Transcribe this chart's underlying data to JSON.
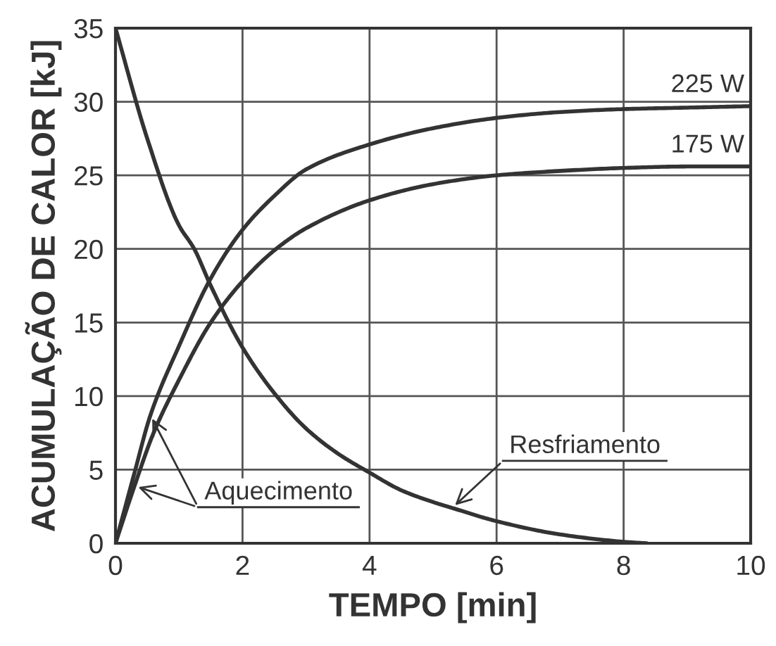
{
  "chart_data": {
    "type": "line",
    "xlabel": "TEMPO [min]",
    "ylabel": "ACUMULAÇÃO DE CALOR [kJ]",
    "series": [
      {
        "name": "225 W",
        "color": "#333333",
        "x": [
          0,
          0.3,
          0.55,
          1,
          1.5,
          2,
          2.5,
          3,
          4,
          5,
          6,
          7,
          8,
          9,
          10
        ],
        "values": [
          0,
          4.8,
          8.7,
          13.4,
          18.0,
          21.3,
          23.6,
          25.4,
          27.1,
          28.2,
          28.9,
          29.3,
          29.5,
          29.6,
          29.7
        ]
      },
      {
        "name": "175 W",
        "color": "#333333",
        "x": [
          0,
          0.3,
          0.6,
          1,
          1.5,
          2,
          2.5,
          3,
          4,
          5,
          6,
          7,
          8,
          9,
          10
        ],
        "values": [
          0,
          3.9,
          7.5,
          11.1,
          15.0,
          17.8,
          19.9,
          21.4,
          23.3,
          24.4,
          25.0,
          25.3,
          25.5,
          25.6,
          25.6
        ]
      },
      {
        "color": "#333333",
        "x": [
          0,
          0.5,
          1,
          1.24,
          1.5,
          2,
          2.5,
          3,
          3.5,
          4,
          4.5,
          5,
          5.3,
          6,
          7,
          8,
          8.35
        ],
        "values": [
          35,
          27.5,
          21.6,
          20,
          17.5,
          13.3,
          10.2,
          7.8,
          6.1,
          4.8,
          3.6,
          2.8,
          2.4,
          1.5,
          0.6,
          0.1,
          0
        ]
      }
    ],
    "xlim": [
      0,
      10
    ],
    "xticks": [
      0,
      2,
      4,
      6,
      8,
      10
    ],
    "ylim": [
      0,
      35
    ],
    "yticks": [
      0,
      5,
      10,
      15,
      20,
      25,
      30,
      35
    ],
    "grid": true,
    "marker": "none",
    "line_style": "solid",
    "annotations": [
      {
        "text": "Aquecimento",
        "x": 0.55,
        "y": 8.7
      },
      {
        "text": "Resfriamento",
        "x": 5.3,
        "y": 2.4
      }
    ]
  }
}
